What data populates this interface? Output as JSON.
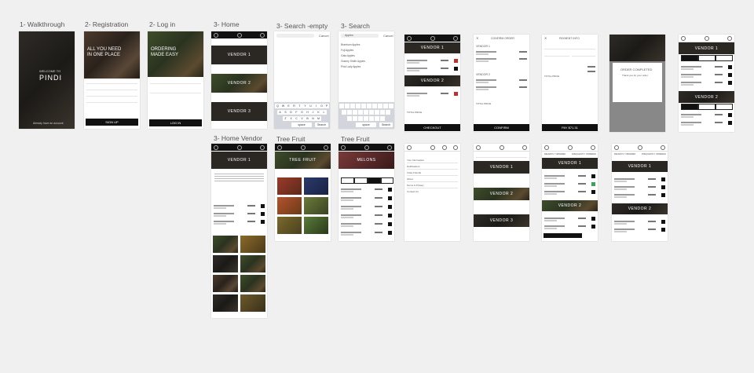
{
  "screens": {
    "walkthrough": {
      "label": "1- Walkthrough",
      "welcome": "WELCOME TO",
      "brand": "PINDI",
      "footer": "Already have an account"
    },
    "registration": {
      "label": "2- Registration",
      "headline_1": "ALL YOU NEED",
      "headline_2": "IN ONE PLACE",
      "button": "SIGN UP"
    },
    "login": {
      "label": "2- Log in",
      "headline_1": "ORDERING",
      "headline_2": "MADE EASY",
      "button": "LOG IN"
    },
    "home": {
      "label": "3- Home",
      "vendors": [
        "VENDOR 1",
        "VENDOR 2",
        "VENDOR 3"
      ]
    },
    "search_empty": {
      "label": "3- Search -empty",
      "cancel": "Cancel",
      "keys_row1": [
        "Q",
        "W",
        "E",
        "R",
        "T",
        "Y",
        "U",
        "I",
        "O",
        "P"
      ],
      "keys_row2": [
        "A",
        "S",
        "D",
        "F",
        "G",
        "H",
        "J",
        "K",
        "L"
      ],
      "keys_row3": [
        "Z",
        "X",
        "C",
        "V",
        "B",
        "N",
        "M"
      ],
      "space": "space",
      "search_key": "Search"
    },
    "search": {
      "label": "3- Search",
      "query": "Apples",
      "cancel": "Cancel",
      "results": [
        "Braeburn Apples",
        "Fuji Apples",
        "Gala Apples",
        "Granny Smith Apples",
        "Pink Lady Apples"
      ],
      "space": "space",
      "search_key": "Search"
    },
    "cart": {
      "vendors": [
        "VENDOR 1",
        "VENDOR 2"
      ],
      "total": "TOTAL PRICE",
      "button": "CHECKOUT"
    },
    "confirm": {
      "title": "CONFIRM ORDER",
      "vendor_1": "VENDOR 1",
      "vendor_2": "VENDOR 2",
      "total": "TOTAL PRICE",
      "button": "CONFIRM"
    },
    "payment": {
      "title": "PAYMENT INFO",
      "total": "TOTAL PRICE",
      "button": "PAY $71.31"
    },
    "completed": {
      "title": "ORDER COMPLETED",
      "subtitle": "Thank you for your order"
    },
    "orders": {
      "vendors": [
        "VENDOR 1",
        "VENDOR 2"
      ]
    },
    "home_vendor": {
      "label": "3- Home Vendor",
      "vendor": "VENDOR 1"
    },
    "tree_fruit": {
      "label": "Tree Fruit",
      "banner": "TREE FRUIT"
    },
    "melons": {
      "label": "Tree Fruit",
      "banner": "MELONS"
    },
    "menu": {
      "items": [
        "Your Information",
        "Notifications",
        "Invite Friends",
        "About",
        "Terms & Privacy",
        "Contact Us"
      ]
    },
    "vendor_list": {
      "vendors": [
        "VENDOR 1",
        "VENDOR 2",
        "VENDOR 3"
      ]
    },
    "recent": {
      "tabs": [
        "RECENTLY ORDERED",
        "FREQUENTLY ORDERED"
      ],
      "vendors": [
        "VENDOR 1",
        "VENDOR 2"
      ]
    },
    "recent2": {
      "tabs": [
        "RECENTLY ORDERED",
        "FREQUENTLY ORDERED"
      ],
      "vendors": [
        "VENDOR 1",
        "VENDOR 2"
      ]
    }
  }
}
